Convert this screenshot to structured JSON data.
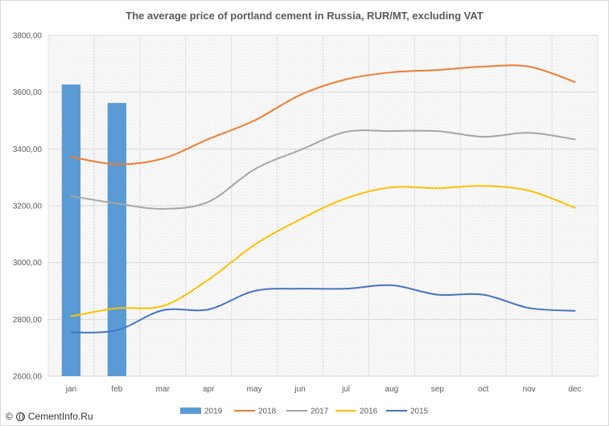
{
  "page": {
    "credit": "CementInfo.Ru"
  },
  "chart_data": {
    "type": "bar",
    "title": "The average price of portland cement in Russia, RUR/MT, excluding VAT",
    "xlabel": "",
    "ylabel": "",
    "categories": [
      "jan",
      "feb",
      "mar",
      "apr",
      "may",
      "jun",
      "jul",
      "aug",
      "sep",
      "oct",
      "nov",
      "dec"
    ],
    "ylim": [
      2600,
      3800
    ],
    "yticks": [
      2600,
      2800,
      3000,
      3200,
      3400,
      3600,
      3800
    ],
    "ytick_labels": [
      "2600,00",
      "2800,00",
      "3000,00",
      "3200,00",
      "3400,00",
      "3600,00",
      "3800,00"
    ],
    "grid": true,
    "grid_style": "hatched",
    "legend_position": "bottom",
    "series": [
      {
        "name": "2019",
        "type": "bar",
        "color": "#5b9bd5",
        "values": [
          3627,
          3562,
          null,
          null,
          null,
          null,
          null,
          null,
          null,
          null,
          null,
          null
        ]
      },
      {
        "name": "2018",
        "type": "line",
        "color": "#ed7d31",
        "values": [
          3372,
          3346,
          3366,
          3435,
          3500,
          3590,
          3645,
          3670,
          3678,
          3690,
          3690,
          3636
        ]
      },
      {
        "name": "2017",
        "type": "line",
        "color": "#a5a5a5",
        "values": [
          3234,
          3208,
          3189,
          3214,
          3328,
          3396,
          3460,
          3463,
          3463,
          3443,
          3457,
          3434
        ]
      },
      {
        "name": "2016",
        "type": "line",
        "color": "#ffc000",
        "values": [
          2811,
          2839,
          2847,
          2940,
          3062,
          3152,
          3226,
          3265,
          3262,
          3270,
          3253,
          3193
        ]
      },
      {
        "name": "2015",
        "type": "line",
        "color": "#4472c4",
        "values": [
          2754,
          2762,
          2832,
          2835,
          2900,
          2908,
          2908,
          2920,
          2887,
          2887,
          2840,
          2830
        ]
      }
    ]
  }
}
